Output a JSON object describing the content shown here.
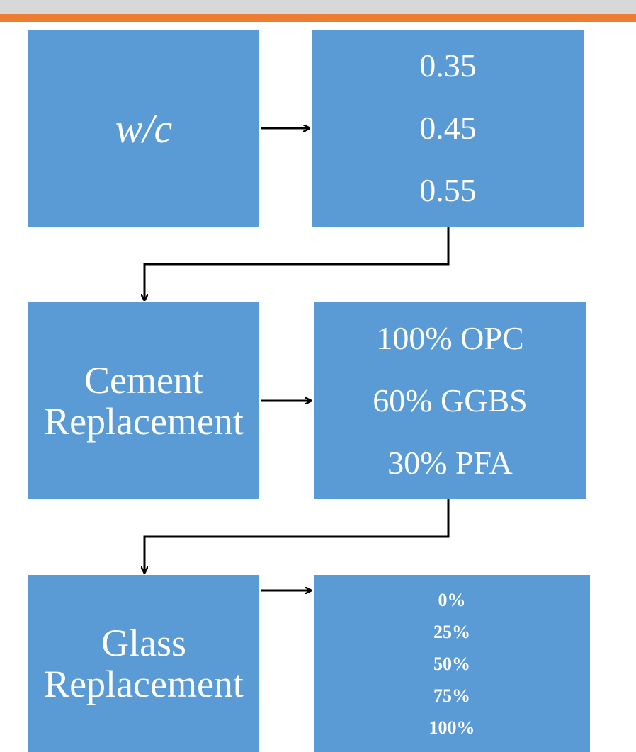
{
  "colors": {
    "box_fill": "#5b9bd5",
    "top_band_gray": "#d8d8d8",
    "top_band_orange": "#ed7d31",
    "connector": "#000000",
    "text": "#ffffff"
  },
  "rows": [
    {
      "label": [
        "w/c"
      ],
      "values": [
        "0.35",
        "0.45",
        "0.55"
      ]
    },
    {
      "label": [
        "Cement",
        "Replacement"
      ],
      "values": [
        "100% OPC",
        "60% GGBS",
        "30% PFA"
      ]
    },
    {
      "label": [
        "Glass",
        "Replacement"
      ],
      "values": [
        "0%",
        "25%",
        "50%",
        "75%",
        "100%"
      ]
    }
  ]
}
